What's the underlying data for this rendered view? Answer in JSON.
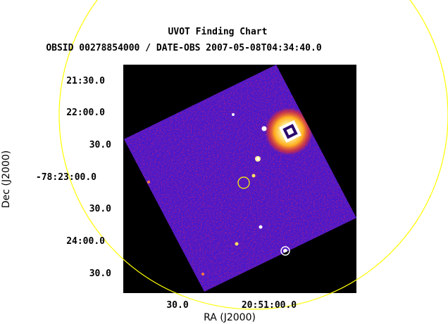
{
  "title": "UVOT Finding Chart",
  "subtitle": "OBSID 00278854000 / DATE-OBS 2007-05-08T04:34:40.0",
  "axes": {
    "xlabel": "RA (J2000)",
    "ylabel": "Dec (J2000)",
    "x_ticks": [
      "30.0",
      "20:51:00.0"
    ],
    "y_ticks": [
      "21:30.0",
      "22:00.0",
      "30.0",
      "-78:23:00.0",
      "30.0",
      "24:00.0",
      "30.0"
    ]
  },
  "colors": {
    "background": "#ffffff",
    "image_background": "#000000",
    "field_low": "#3a1ad6",
    "field_mid": "#b01c8a",
    "field_high": "#ff3a10",
    "field_saturated": "#fff2a0",
    "large_circle": "#ffff00",
    "target_circle": "#ffff00",
    "source_circle": "#ffffff"
  },
  "markers": {
    "large_circle": "error-circle",
    "target_circle": "target-position",
    "source_circle": "known-source"
  }
}
